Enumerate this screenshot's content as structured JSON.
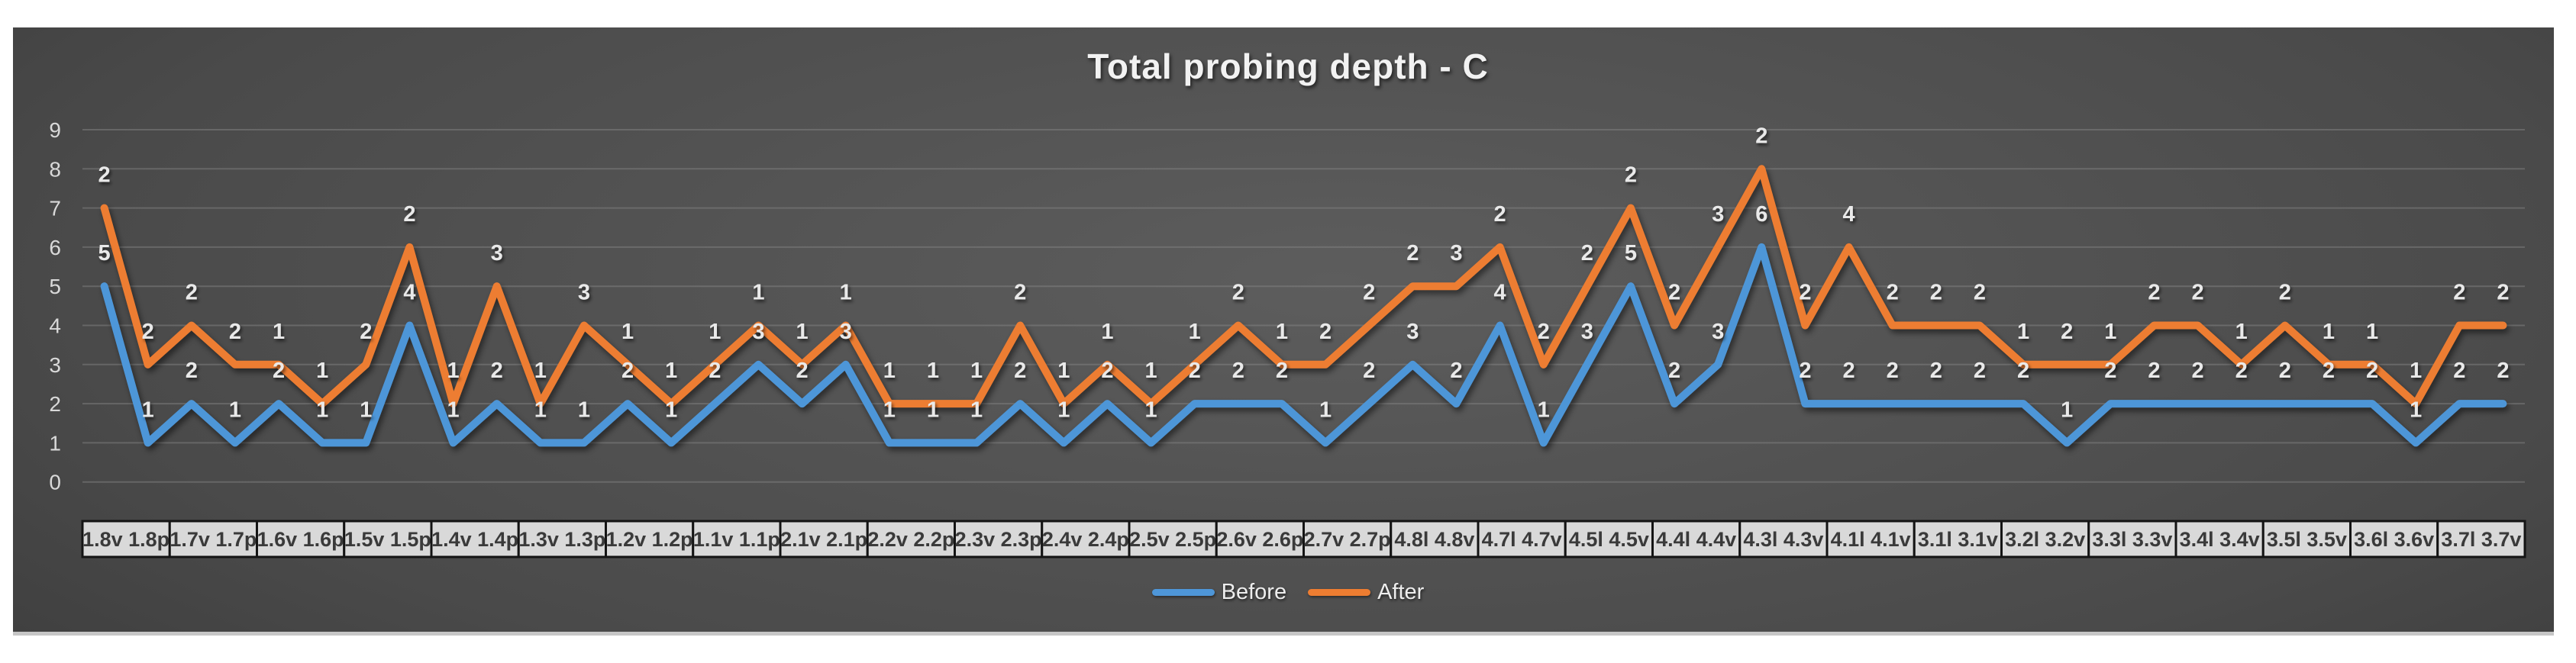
{
  "chart_data": {
    "type": "line",
    "title": "Total probing depth - C",
    "categories_grouped": [
      "1.8v 1.8p",
      "1.7v 1.7p",
      "1.6v 1.6p",
      "1.5v 1.5p",
      "1.4v 1.4p",
      "1.3v 1.3p",
      "1.2v 1.2p",
      "1.1v 1.1p",
      "2.1v 2.1p",
      "2.2v 2.2p",
      "2.3v 2.3p",
      "2.4v 2.4p",
      "2.5v 2.5p",
      "2.6v 2.6p",
      "2.7v 2.7p",
      "4.8l 4.8v",
      "4.7l 4.7v",
      "4.5l 4.5v",
      "4.4l 4.4v",
      "4.3l 4.3v",
      "4.1l 4.1v",
      "3.1l 3.1v",
      "3.2l 3.2v",
      "3.3l 3.3v",
      "3.4l 3.4v",
      "3.5l 3.5v",
      "3.6l 3.6v",
      "3.7l 3.7v"
    ],
    "points_per_category": 2,
    "ylim": [
      0,
      9
    ],
    "yticks": [
      0,
      1,
      2,
      3,
      4,
      5,
      6,
      7,
      8,
      9
    ],
    "grid": true,
    "legend_position": "bottom",
    "series": [
      {
        "name": "Before",
        "color": "#4E96D8",
        "values": [
          5,
          1,
          2,
          1,
          2,
          1,
          1,
          4,
          1,
          2,
          1,
          1,
          2,
          1,
          2,
          3,
          2,
          3,
          1,
          1,
          1,
          2,
          1,
          2,
          1,
          2,
          2,
          2,
          1,
          2,
          3,
          2,
          4,
          1,
          3,
          5,
          2,
          3,
          6,
          2,
          2,
          2,
          2,
          2,
          2,
          1,
          2,
          2,
          2,
          2,
          2,
          2,
          2,
          1,
          2,
          2
        ],
        "data_labels": [
          "5",
          "1",
          "2",
          "1",
          "2",
          "1",
          "1",
          "4",
          "1",
          "2",
          "1",
          "1",
          "2",
          "1",
          "2",
          "3",
          "2",
          "3",
          "1",
          "1",
          "1",
          "2",
          "1",
          "2",
          "1",
          "2",
          "2",
          "2",
          "1",
          "2",
          "3",
          "2",
          "4",
          "1",
          "3",
          "5",
          "2",
          "3",
          "6",
          "2",
          "2",
          "2",
          "2",
          "2",
          "2",
          "1",
          "2",
          "2",
          "2",
          "2",
          "2",
          "2",
          "2",
          "1",
          "2",
          "2"
        ]
      },
      {
        "name": "After",
        "color": "#ED7D31",
        "values": [
          7,
          3,
          4,
          3,
          3,
          2,
          3,
          6,
          2,
          5,
          2,
          4,
          3,
          2,
          3,
          4,
          3,
          4,
          2,
          2,
          2,
          4,
          2,
          3,
          2,
          3,
          4,
          3,
          3,
          4,
          5,
          5,
          6,
          3,
          5,
          7,
          4,
          6,
          8,
          4,
          6,
          4,
          4,
          4,
          3,
          3,
          3,
          4,
          4,
          3,
          4,
          3,
          3,
          2,
          4,
          4
        ],
        "data_labels": [
          "2",
          "2",
          "2",
          "2",
          "1",
          "1",
          "2",
          "2",
          "1",
          "3",
          "1",
          "3",
          "1",
          "1",
          "1",
          "1",
          "1",
          "1",
          "1",
          "1",
          "1",
          "2",
          "1",
          "1",
          "1",
          "1",
          "2",
          "1",
          "2",
          "2",
          "2",
          "3",
          "2",
          "2",
          "2",
          "2",
          "2",
          "3",
          "2",
          "2",
          "4",
          "2",
          "2",
          "2",
          "1",
          "2",
          "1",
          "2",
          "2",
          "1",
          "2",
          "1",
          "1",
          "1",
          "2",
          "2"
        ]
      }
    ]
  },
  "colors": {
    "page_bg": "#ffffff",
    "plot_bg_center": "#5d5d5d",
    "plot_bg_edge": "#252525",
    "grid": "#8a8a8a",
    "axis_text": "#d9d9d9",
    "data_label": "#e9e9e9",
    "xbox_bg": "#d9d9d9",
    "xbox_border": "#141414",
    "xbox_text": "#3a3a3a",
    "bottom_edge": "#c6c6c6",
    "title_text": "#f2f2f2"
  }
}
